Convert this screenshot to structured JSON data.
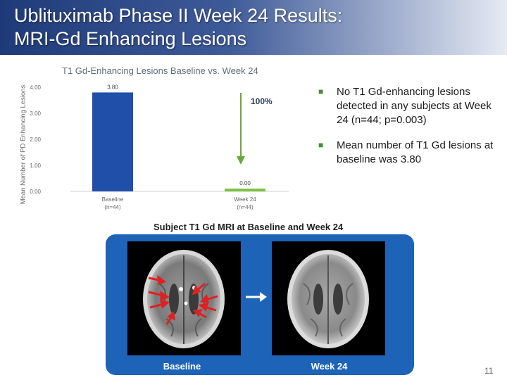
{
  "header": {
    "title_line1": "Ublituximab Phase II Week 24 Results:",
    "title_line2": "MRI-Gd Enhancing Lesions"
  },
  "chart_data": {
    "type": "bar",
    "title": "T1 Gd-Enhancing Lesions Baseline vs. Week 24",
    "ylabel": "Mean Number of PD Enhancing Lesions",
    "xlabel": "",
    "categories": [
      "Baseline",
      "Week 24"
    ],
    "category_sublabels": [
      "(n=44)",
      "(n=44)"
    ],
    "values": [
      3.8,
      0.0
    ],
    "value_labels": [
      "3.80",
      "0.00"
    ],
    "colors": [
      "#1f4fa8",
      "#7cc242"
    ],
    "ylim": [
      0,
      4
    ],
    "yticks": [
      0,
      1,
      2,
      3,
      4
    ],
    "ytick_labels": [
      "0.00",
      "1.00",
      "2.00",
      "3.00",
      "4.00"
    ],
    "grid": false,
    "annotation": {
      "text": "100%",
      "color": "#6aa83a"
    }
  },
  "bullets": [
    "No T1 Gd-enhancing lesions detected in any subjects at Week 24 (n=44; p=0.003)",
    "Mean number of T1 Gd lesions at baseline was 3.80"
  ],
  "mri": {
    "title": "Subject T1 Gd MRI at Baseline and Week 24",
    "label_left": "Baseline",
    "label_right": "Week 24",
    "panel_color": "#1d63b8",
    "lesion_arrow_color": "#e02020"
  },
  "page_number": "11"
}
